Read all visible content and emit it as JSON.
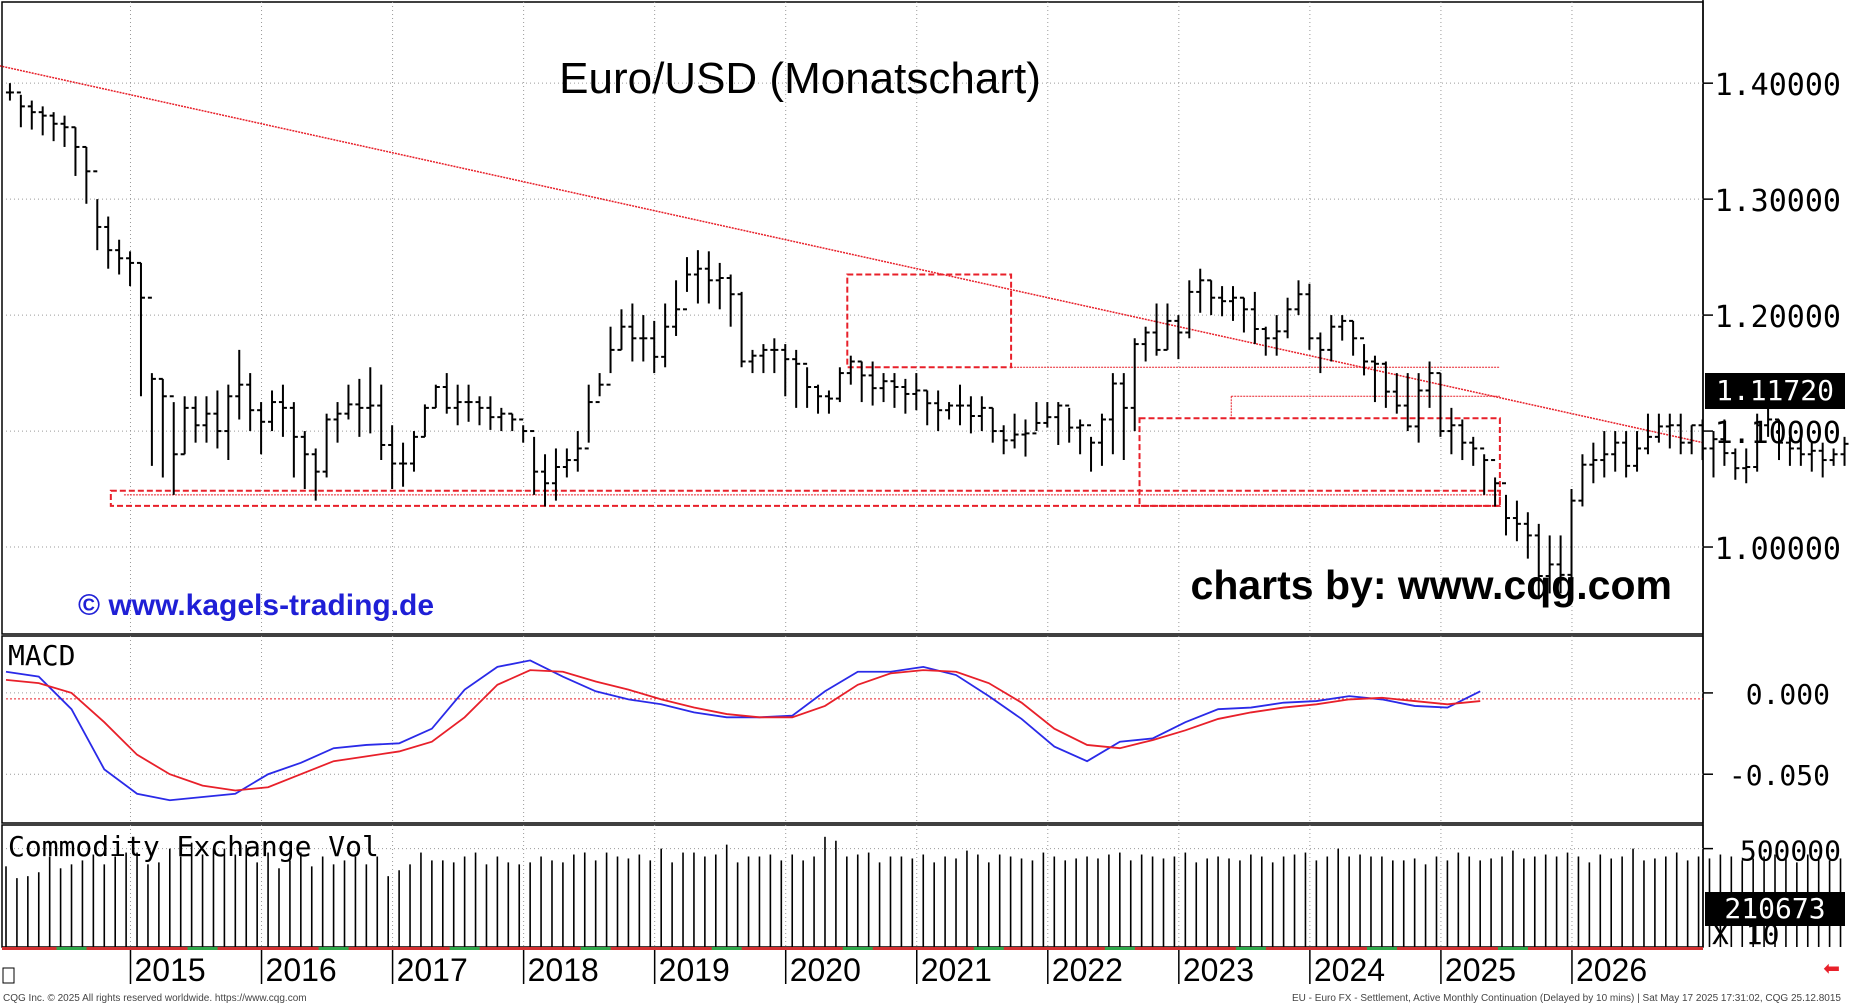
{
  "title": "Euro/USD (Monatschart)",
  "watermark_left": "© www.kagels-trading.de",
  "watermark_right": "charts by: www.cqg.com",
  "footer_left": "CQG Inc. © 2025 All rights reserved worldwide. https://www.cqg.com",
  "footer_right": "EU - Euro FX - Settlement, Active Monthly Continuation (Delayed by 10 mins) | Sat May 17 2025 17:31:02, CQG 25.12.8015",
  "colors": {
    "price_bars": "#000000",
    "trendline": "#e8202a",
    "macd_line": "#2a2ae8",
    "signal_line": "#e8202a",
    "annotation_boxes": "#e8202a",
    "volume_bars": "#000000"
  },
  "chart_data": [
    {
      "type": "ohlc",
      "panel": "price",
      "title": "Euro/USD (Monatschart)",
      "y_ticks": [
        "1.40000",
        "1.30000",
        "1.20000",
        "1.10000",
        "1.00000"
      ],
      "y_tick_values": [
        1.4,
        1.3,
        1.2,
        1.1,
        1.0
      ],
      "ylim": [
        0.925,
        1.47
      ],
      "x_ticks": [
        "2015",
        "2016",
        "2017",
        "2018",
        "2019",
        "2020",
        "2021",
        "2022",
        "2023",
        "2024",
        "2025",
        "2026"
      ],
      "xlim": [
        2014.05,
        2027.0
      ],
      "last_price_label": "1.11720",
      "last_price": 1.1172,
      "closes": [
        1.392,
        1.38,
        1.375,
        1.372,
        1.365,
        1.362,
        1.345,
        1.324,
        1.276,
        1.256,
        1.249,
        1.245,
        1.215,
        1.145,
        1.13,
        1.08,
        1.12,
        1.105,
        1.115,
        1.1,
        1.13,
        1.14,
        1.118,
        1.108,
        1.125,
        1.12,
        1.095,
        1.08,
        1.065,
        1.11,
        1.115,
        1.123,
        1.12,
        1.122,
        1.088,
        1.072,
        1.072,
        1.095,
        1.12,
        1.138,
        1.12,
        1.125,
        1.125,
        1.12,
        1.112,
        1.115,
        1.11,
        1.1,
        1.065,
        1.055,
        1.069,
        1.075,
        1.085,
        1.125,
        1.14,
        1.17,
        1.19,
        1.18,
        1.18,
        1.164,
        1.19,
        1.205,
        1.235,
        1.24,
        1.23,
        1.232,
        1.218,
        1.16,
        1.165,
        1.17,
        1.17,
        1.162,
        1.158,
        1.138,
        1.13,
        1.128,
        1.15,
        1.16,
        1.148,
        1.137,
        1.143,
        1.138,
        1.132,
        1.135,
        1.124,
        1.118,
        1.122,
        1.122,
        1.113,
        1.12,
        1.1,
        1.092,
        1.097,
        1.098,
        1.107,
        1.112,
        1.122,
        1.103,
        1.105,
        1.09,
        1.11,
        1.141,
        1.12,
        1.175,
        1.185,
        1.17,
        1.195,
        1.185,
        1.22,
        1.23,
        1.215,
        1.212,
        1.215,
        1.205,
        1.188,
        1.18,
        1.186,
        1.205,
        1.218,
        1.18,
        1.17,
        1.19,
        1.195,
        1.18,
        1.16,
        1.158,
        1.134,
        1.122,
        1.104,
        1.135,
        1.15,
        1.1,
        1.105,
        1.09,
        1.085,
        1.075,
        1.055,
        1.025,
        1.02,
        1.01,
        0.975,
        0.985,
        0.976,
        1.04,
        1.071,
        1.075,
        1.08,
        1.09,
        1.07,
        1.085,
        1.095,
        1.104,
        1.105,
        1.09,
        1.105,
        1.085,
        1.093,
        1.081,
        1.068,
        1.069,
        1.105,
        1.11,
        1.09,
        1.085,
        1.08,
        1.083,
        1.075,
        1.08,
        1.089,
        1.082,
        1.085,
        1.105,
        1.107,
        1.09,
        1.07,
        1.065,
        1.05,
        1.038,
        1.04,
        1.051,
        1.075,
        1.1,
        1.131,
        1.13,
        1.117
      ],
      "lows": [
        1.385,
        1.362,
        1.36,
        1.355,
        1.35,
        1.345,
        1.32,
        1.296,
        1.256,
        1.24,
        1.235,
        1.225,
        1.13,
        1.07,
        1.06,
        1.045,
        1.08,
        1.09,
        1.09,
        1.085,
        1.075,
        1.11,
        1.1,
        1.08,
        1.1,
        1.095,
        1.06,
        1.05,
        1.04,
        1.06,
        1.09,
        1.11,
        1.095,
        1.098,
        1.075,
        1.05,
        1.052,
        1.065,
        1.095,
        1.12,
        1.115,
        1.105,
        1.108,
        1.105,
        1.101,
        1.1,
        1.1,
        1.09,
        1.045,
        1.035,
        1.04,
        1.06,
        1.065,
        1.09,
        1.13,
        1.15,
        1.17,
        1.16,
        1.16,
        1.15,
        1.155,
        1.182,
        1.22,
        1.21,
        1.21,
        1.205,
        1.19,
        1.155,
        1.15,
        1.15,
        1.15,
        1.13,
        1.12,
        1.12,
        1.115,
        1.115,
        1.125,
        1.14,
        1.125,
        1.122,
        1.125,
        1.12,
        1.115,
        1.118,
        1.105,
        1.1,
        1.11,
        1.105,
        1.098,
        1.1,
        1.09,
        1.08,
        1.085,
        1.078,
        1.1,
        1.103,
        1.088,
        1.09,
        1.08,
        1.065,
        1.07,
        1.08,
        1.075,
        1.1,
        1.16,
        1.165,
        1.17,
        1.162,
        1.18,
        1.202,
        1.2,
        1.199,
        1.195,
        1.185,
        1.175,
        1.165,
        1.165,
        1.18,
        1.2,
        1.17,
        1.15,
        1.16,
        1.178,
        1.165,
        1.148,
        1.125,
        1.12,
        1.115,
        1.1,
        1.09,
        1.12,
        1.095,
        1.08,
        1.075,
        1.07,
        1.045,
        1.035,
        1.01,
        1.005,
        0.99,
        0.955,
        0.96,
        0.96,
        0.97,
        1.035,
        1.055,
        1.06,
        1.065,
        1.06,
        1.065,
        1.08,
        1.09,
        1.085,
        1.08,
        1.08,
        1.075,
        1.06,
        1.07,
        1.058,
        1.055,
        1.065,
        1.095,
        1.075,
        1.07,
        1.07,
        1.065,
        1.06,
        1.07,
        1.07,
        1.075,
        1.075,
        1.08,
        1.095,
        1.08,
        1.06,
        1.05,
        1.03,
        1.03,
        1.025,
        1.03,
        1.035,
        1.075,
        1.095,
        1.105,
        1.112
      ],
      "highs": [
        1.4,
        1.39,
        1.385,
        1.38,
        1.375,
        1.372,
        1.362,
        1.345,
        1.3,
        1.285,
        1.265,
        1.255,
        1.245,
        1.15,
        1.145,
        1.125,
        1.13,
        1.13,
        1.13,
        1.135,
        1.14,
        1.17,
        1.15,
        1.125,
        1.135,
        1.14,
        1.125,
        1.1,
        1.085,
        1.115,
        1.125,
        1.14,
        1.145,
        1.155,
        1.14,
        1.105,
        1.09,
        1.1,
        1.123,
        1.14,
        1.15,
        1.14,
        1.14,
        1.13,
        1.13,
        1.12,
        1.115,
        1.105,
        1.095,
        1.08,
        1.085,
        1.085,
        1.1,
        1.14,
        1.15,
        1.19,
        1.205,
        1.21,
        1.2,
        1.195,
        1.21,
        1.23,
        1.25,
        1.256,
        1.255,
        1.245,
        1.235,
        1.22,
        1.17,
        1.175,
        1.18,
        1.175,
        1.17,
        1.155,
        1.14,
        1.135,
        1.155,
        1.165,
        1.16,
        1.16,
        1.15,
        1.15,
        1.145,
        1.15,
        1.135,
        1.135,
        1.125,
        1.14,
        1.13,
        1.13,
        1.12,
        1.105,
        1.115,
        1.11,
        1.125,
        1.125,
        1.125,
        1.12,
        1.11,
        1.095,
        1.115,
        1.15,
        1.15,
        1.18,
        1.19,
        1.21,
        1.21,
        1.2,
        1.23,
        1.24,
        1.23,
        1.225,
        1.225,
        1.215,
        1.22,
        1.19,
        1.2,
        1.215,
        1.23,
        1.227,
        1.185,
        1.2,
        1.2,
        1.195,
        1.175,
        1.165,
        1.16,
        1.15,
        1.15,
        1.15,
        1.16,
        1.15,
        1.12,
        1.11,
        1.095,
        1.08,
        1.06,
        1.045,
        1.04,
        1.03,
        1.02,
        1.01,
        1.01,
        1.05,
        1.08,
        1.09,
        1.1,
        1.1,
        1.1,
        1.1,
        1.115,
        1.115,
        1.115,
        1.115,
        1.105,
        1.11,
        1.1,
        1.11,
        1.085,
        1.085,
        1.115,
        1.125,
        1.11,
        1.095,
        1.095,
        1.09,
        1.09,
        1.085,
        1.095,
        1.09,
        1.1,
        1.11,
        1.12,
        1.11,
        1.09,
        1.08,
        1.07,
        1.06,
        1.05,
        1.06,
        1.1,
        1.12,
        1.16,
        1.14,
        1.13
      ],
      "annotations": {
        "trendline": [
          [
            2014.0,
            1.415
          ],
          [
            2027.0,
            1.09
          ]
        ],
        "support_line": 1.045,
        "resistance_line": 1.155,
        "prior_high_line": 1.13,
        "boxes": [
          {
            "from": 2014.85,
            "to": 2025.45,
            "y_low": 1.0355,
            "y_high": 1.0485
          },
          {
            "from": 2020.47,
            "to": 2021.72,
            "y_low": 1.155,
            "y_high": 1.235
          },
          {
            "from": 2022.7,
            "to": 2025.45,
            "y_low": 1.0355,
            "y_high": 1.111
          }
        ]
      }
    },
    {
      "type": "line",
      "panel": "macd",
      "title": "MACD",
      "y_ticks": [
        "0.000",
        "-0.050"
      ],
      "y_tick_values": [
        0.0,
        -0.05
      ],
      "ylim": [
        -0.08,
        0.035
      ],
      "series": [
        {
          "x": [
            2014.05,
            2014.3,
            2014.55,
            2014.8,
            2015.05,
            2015.3,
            2015.55,
            2015.8,
            2016.05,
            2016.3,
            2016.55,
            2016.8,
            2017.05,
            2017.3,
            2017.55,
            2017.8,
            2018.05,
            2018.3,
            2018.55,
            2018.8,
            2019.05,
            2019.3,
            2019.55,
            2019.8,
            2020.05,
            2020.3,
            2020.55,
            2020.8,
            2021.05,
            2021.3,
            2021.55,
            2021.8,
            2022.05,
            2022.3,
            2022.55,
            2022.8,
            2023.05,
            2023.3,
            2023.55,
            2023.8,
            2024.05,
            2024.3,
            2024.55,
            2024.8,
            2025.05,
            2025.3
          ],
          "values": [
            0.013,
            0.01,
            -0.01,
            -0.047,
            -0.062,
            -0.066,
            -0.064,
            -0.062,
            -0.05,
            -0.043,
            -0.034,
            -0.032,
            -0.031,
            -0.022,
            0.002,
            0.016,
            0.02,
            0.01,
            0.001,
            -0.004,
            -0.007,
            -0.012,
            -0.015,
            -0.015,
            -0.014,
            0.001,
            0.013,
            0.013,
            0.016,
            0.011,
            -0.002,
            -0.016,
            -0.033,
            -0.042,
            -0.03,
            -0.028,
            -0.018,
            -0.01,
            -0.009,
            -0.006,
            -0.005,
            -0.002,
            -0.004,
            -0.008,
            -0.009,
            0.001
          ]
        },
        {
          "x": [
            2014.05,
            2014.3,
            2014.55,
            2014.8,
            2015.05,
            2015.3,
            2015.55,
            2015.8,
            2016.05,
            2016.3,
            2016.55,
            2016.8,
            2017.05,
            2017.3,
            2017.55,
            2017.8,
            2018.05,
            2018.3,
            2018.55,
            2018.8,
            2019.05,
            2019.3,
            2019.55,
            2019.8,
            2020.05,
            2020.3,
            2020.55,
            2020.8,
            2021.05,
            2021.3,
            2021.55,
            2021.8,
            2022.05,
            2022.3,
            2022.55,
            2022.8,
            2023.05,
            2023.3,
            2023.55,
            2023.8,
            2024.05,
            2024.3,
            2024.55,
            2024.8,
            2025.05,
            2025.3
          ],
          "values": [
            0.008,
            0.006,
            0.0,
            -0.018,
            -0.038,
            -0.05,
            -0.057,
            -0.06,
            -0.058,
            -0.05,
            -0.042,
            -0.039,
            -0.036,
            -0.03,
            -0.015,
            0.005,
            0.014,
            0.013,
            0.007,
            0.002,
            -0.004,
            -0.009,
            -0.013,
            -0.015,
            -0.015,
            -0.008,
            0.005,
            0.012,
            0.014,
            0.013,
            0.006,
            -0.006,
            -0.022,
            -0.032,
            -0.034,
            -0.029,
            -0.023,
            -0.016,
            -0.012,
            -0.009,
            -0.007,
            -0.004,
            -0.003,
            -0.005,
            -0.007,
            -0.005
          ]
        }
      ]
    },
    {
      "type": "bar",
      "panel": "volume",
      "title": "Commodity Exchange Vol",
      "y_ticks": [
        "500000"
      ],
      "y_tick_values": [
        500000
      ],
      "ylim": [
        0,
        620000
      ],
      "last_value_label": "210673",
      "last_value": 210673,
      "scale_label": "X 10",
      "x_start": 2014.05,
      "x_step": 0.08333,
      "values": [
        410000,
        350000,
        360000,
        380000,
        460000,
        400000,
        420000,
        440000,
        470000,
        420000,
        460000,
        480000,
        480000,
        420000,
        430000,
        500000,
        460000,
        530000,
        470000,
        500000,
        500000,
        470000,
        520000,
        430000,
        480000,
        400000,
        440000,
        480000,
        410000,
        460000,
        420000,
        440000,
        460000,
        420000,
        460000,
        360000,
        390000,
        420000,
        480000,
        440000,
        440000,
        430000,
        460000,
        480000,
        420000,
        460000,
        430000,
        420000,
        430000,
        460000,
        440000,
        430000,
        470000,
        480000,
        440000,
        480000,
        460000,
        450000,
        470000,
        440000,
        500000,
        430000,
        480000,
        480000,
        460000,
        470000,
        520000,
        430000,
        460000,
        460000,
        470000,
        440000,
        470000,
        440000,
        460000,
        560000,
        540000,
        460000,
        470000,
        480000,
        430000,
        460000,
        460000,
        450000,
        470000,
        430000,
        460000,
        450000,
        490000,
        470000,
        430000,
        470000,
        460000,
        450000,
        440000,
        480000,
        460000,
        440000,
        450000,
        460000,
        450000,
        470000,
        480000,
        440000,
        470000,
        460000,
        450000,
        460000,
        480000,
        430000,
        450000,
        460000,
        450000,
        440000,
        470000,
        460000,
        430000,
        460000,
        470000,
        480000,
        440000,
        460000,
        500000,
        460000,
        470000,
        460000,
        460000,
        440000,
        440000,
        450000,
        420000,
        460000,
        440000,
        480000,
        460000,
        440000,
        450000,
        460000,
        490000,
        450000,
        460000,
        470000,
        460000,
        480000,
        460000,
        430000,
        470000,
        450000,
        460000,
        500000,
        440000,
        450000,
        460000,
        480000,
        440000,
        460000,
        450000,
        470000,
        460000,
        440000,
        450000,
        460000,
        470000,
        460000,
        430000,
        470000,
        460000,
        440000,
        450000,
        460000,
        470000,
        440000,
        460000,
        450000,
        480000,
        470000,
        460000,
        440000,
        450000,
        470000,
        460000,
        500000,
        460000,
        440000,
        470000,
        210673
      ]
    }
  ]
}
